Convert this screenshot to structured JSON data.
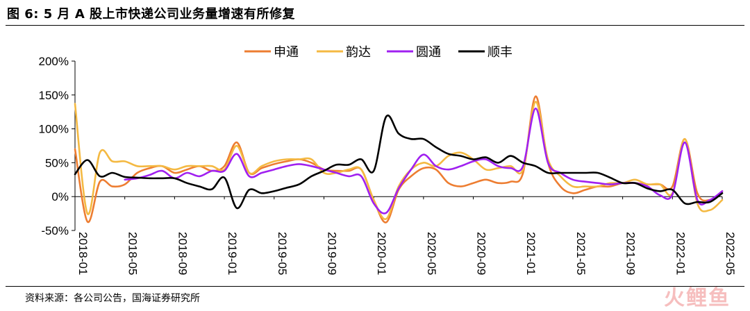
{
  "header": {
    "title": "图 6:  5 月 A 股上市快递公司业务量增速有所修复"
  },
  "footer": {
    "source": "资料来源：各公司公告，国海证券研究所",
    "watermark": "火鲤鱼"
  },
  "chart_data": {
    "type": "line",
    "title": "",
    "xlabel": "",
    "ylabel": "",
    "ylim": [
      -50,
      200
    ],
    "yticks": [
      -50,
      0,
      50,
      100,
      150,
      200
    ],
    "ytick_labels": [
      "-50%",
      "0%",
      "50%",
      "100%",
      "150%",
      "200%"
    ],
    "xtick_labels": [
      "2018-01",
      "2018-05",
      "2018-09",
      "2019-01",
      "2019-05",
      "2019-09",
      "2020-01",
      "2020-05",
      "2020-09",
      "2021-01",
      "2021-05",
      "2021-09",
      "2022-01",
      "2022-05"
    ],
    "legend_position": "top",
    "x": [
      "2018-01",
      "2018-02",
      "2018-03",
      "2018-04",
      "2018-05",
      "2018-06",
      "2018-07",
      "2018-08",
      "2018-09",
      "2018-10",
      "2018-11",
      "2018-12",
      "2019-01",
      "2019-02",
      "2019-03",
      "2019-04",
      "2019-05",
      "2019-06",
      "2019-07",
      "2019-08",
      "2019-09",
      "2019-10",
      "2019-11",
      "2019-12",
      "2020-01",
      "2020-02",
      "2020-03",
      "2020-04",
      "2020-05",
      "2020-06",
      "2020-07",
      "2020-08",
      "2020-09",
      "2020-10",
      "2020-11",
      "2020-12",
      "2021-01",
      "2021-02",
      "2021-03",
      "2021-04",
      "2021-05",
      "2021-06",
      "2021-07",
      "2021-08",
      "2021-09",
      "2021-10",
      "2021-11",
      "2021-12",
      "2022-01",
      "2022-02",
      "2022-03",
      "2022-04",
      "2022-05"
    ],
    "series": [
      {
        "name": "申通",
        "color": "#ED7D31",
        "values": [
          70,
          -37,
          22,
          15,
          18,
          35,
          42,
          45,
          35,
          40,
          45,
          38,
          45,
          80,
          35,
          42,
          48,
          52,
          55,
          50,
          40,
          38,
          38,
          40,
          -5,
          -38,
          10,
          30,
          42,
          40,
          20,
          15,
          20,
          25,
          20,
          22,
          35,
          148,
          50,
          15,
          5,
          10,
          15,
          15,
          20,
          20,
          18,
          18,
          15,
          85,
          5,
          -5,
          8
        ]
      },
      {
        "name": "韵达",
        "color": "#F4B942",
        "values": [
          137,
          -25,
          65,
          52,
          52,
          45,
          45,
          45,
          40,
          45,
          45,
          45,
          40,
          75,
          35,
          45,
          52,
          55,
          55,
          55,
          35,
          35,
          40,
          40,
          -5,
          -33,
          15,
          40,
          50,
          45,
          60,
          65,
          55,
          40,
          42,
          45,
          40,
          140,
          55,
          30,
          15,
          15,
          15,
          20,
          20,
          25,
          18,
          18,
          5,
          85,
          -10,
          -20,
          -5
        ]
      },
      {
        "name": "圆通",
        "color": "#A020F0",
        "values": [
          null,
          null,
          null,
          null,
          25,
          27,
          32,
          38,
          27,
          35,
          30,
          38,
          38,
          63,
          30,
          35,
          40,
          45,
          48,
          45,
          40,
          35,
          30,
          30,
          -10,
          -24,
          12,
          40,
          62,
          45,
          40,
          45,
          52,
          55,
          45,
          42,
          45,
          130,
          50,
          35,
          25,
          22,
          20,
          18,
          20,
          20,
          15,
          2,
          3,
          80,
          -5,
          -5,
          8
        ]
      },
      {
        "name": "顺丰",
        "color": "#000000",
        "values": [
          33,
          54,
          30,
          35,
          29,
          28,
          27,
          27,
          27,
          20,
          15,
          11,
          28,
          -17,
          10,
          5,
          8,
          13,
          18,
          30,
          38,
          47,
          47,
          55,
          38,
          118,
          93,
          85,
          85,
          73,
          63,
          60,
          55,
          58,
          50,
          60,
          50,
          45,
          35,
          35,
          35,
          35,
          35,
          28,
          20,
          20,
          12,
          8,
          10,
          -10,
          -8,
          -8,
          5
        ]
      }
    ]
  }
}
